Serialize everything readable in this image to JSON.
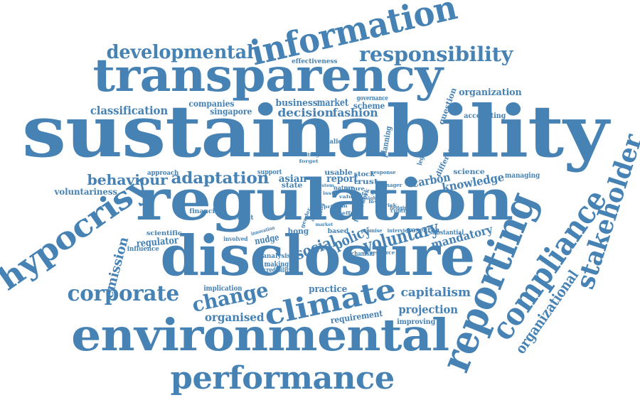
{
  "word_color": "#4682B4",
  "words": [
    "sustainability",
    "transparency",
    "regulation",
    "disclosure",
    "environmental",
    "performance",
    "reporting",
    "compliance",
    "stakeholder",
    "hypocrisy",
    "information",
    "responsibility",
    "developmental",
    "climate",
    "corporate",
    "change",
    "adaptation",
    "behaviour",
    "organizational",
    "emission",
    "knowledge",
    "capitalism",
    "projection",
    "voluntary",
    "mandatory",
    "social",
    "policy",
    "classification",
    "decision",
    "fashion",
    "carbon",
    "organised",
    "organization",
    "companies",
    "singapore",
    "business",
    "market",
    "scheme",
    "voluntariness",
    "regulator",
    "report",
    "asian",
    "nudge",
    "hong",
    "kong",
    "making",
    "credibility",
    "practice",
    "requirement",
    "improving",
    "implication",
    "approach",
    "scientific",
    "influence",
    "financial",
    "account",
    "question",
    "accounting",
    "effectiveness",
    "governance",
    "saliency",
    "planning",
    "legitimacy",
    "different",
    "science",
    "managing",
    "usable",
    "trust",
    "stock",
    "state",
    "support",
    "impact",
    "analysis",
    "research",
    "substantial",
    "interview",
    "mechanism",
    "resource",
    "promise",
    "framework",
    "involved",
    "innovation",
    "gender",
    "based",
    "nature",
    "future",
    "hedging",
    "control",
    "response",
    "manager",
    "article",
    "forget",
    "finding",
    "system",
    "issue",
    "global",
    "insight",
    "scale",
    "level",
    "effect",
    "market",
    "firm",
    "price",
    "risk",
    "value"
  ]
}
